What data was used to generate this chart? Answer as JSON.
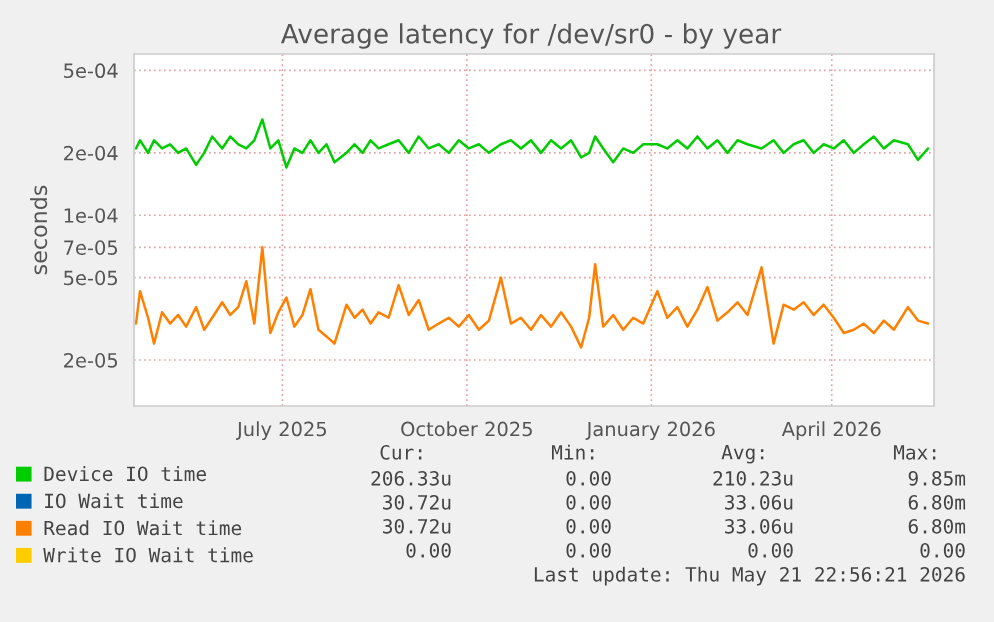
{
  "chart_data": {
    "type": "line",
    "title": "Average latency for /dev/sr0 - by year",
    "ylabel": "seconds",
    "log": "y",
    "grid": true,
    "legend": "bottom left",
    "x": [
      "2025-04-19",
      "2025-04-21",
      "2025-04-25",
      "2025-04-28",
      "2025-05-02",
      "2025-05-06",
      "2025-05-10",
      "2025-05-14",
      "2025-05-19",
      "2025-05-23",
      "2025-05-27",
      "2025-06-01",
      "2025-06-05",
      "2025-06-09",
      "2025-06-13",
      "2025-06-17",
      "2025-06-21",
      "2025-06-25",
      "2025-06-29",
      "2025-07-03",
      "2025-07-07",
      "2025-07-11",
      "2025-07-15",
      "2025-07-19",
      "2025-07-23",
      "2025-07-27",
      "2025-08-02",
      "2025-08-06",
      "2025-08-10",
      "2025-08-14",
      "2025-08-18",
      "2025-08-23",
      "2025-08-28",
      "2025-09-02",
      "2025-09-07",
      "2025-09-12",
      "2025-09-17",
      "2025-09-22",
      "2025-09-27",
      "2025-10-02",
      "2025-10-07",
      "2025-10-12",
      "2025-10-18",
      "2025-10-23",
      "2025-10-28",
      "2025-11-02",
      "2025-11-07",
      "2025-11-12",
      "2025-11-17",
      "2025-11-22",
      "2025-11-27",
      "2025-12-01",
      "2025-12-04",
      "2025-12-08",
      "2025-12-13",
      "2025-12-18",
      "2025-12-23",
      "2025-12-28",
      "2026-01-04",
      "2026-01-09",
      "2026-01-14",
      "2026-01-19",
      "2026-01-24",
      "2026-01-29",
      "2026-02-03",
      "2026-02-08",
      "2026-02-13",
      "2026-02-18",
      "2026-02-25",
      "2026-03-03",
      "2026-03-08",
      "2026-03-13",
      "2026-03-18",
      "2026-03-23",
      "2026-03-28",
      "2026-04-02",
      "2026-04-07",
      "2026-04-12",
      "2026-04-17",
      "2026-04-22",
      "2026-04-27",
      "2026-05-02",
      "2026-05-09",
      "2026-05-14",
      "2026-05-19"
    ],
    "series": [
      {
        "name": "Device IO time",
        "color": "#00cc00",
        "values": [
          0.00021,
          0.00023,
          0.0002,
          0.00023,
          0.00021,
          0.00022,
          0.0002,
          0.00021,
          0.000175,
          0.0002,
          0.00024,
          0.00021,
          0.00024,
          0.00022,
          0.00021,
          0.00023,
          0.00029,
          0.00021,
          0.00023,
          0.00017,
          0.00021,
          0.0002,
          0.00023,
          0.0002,
          0.00022,
          0.00018,
          0.0002,
          0.00022,
          0.0002,
          0.00023,
          0.00021,
          0.00022,
          0.00023,
          0.0002,
          0.00024,
          0.00021,
          0.00022,
          0.0002,
          0.00023,
          0.00021,
          0.00022,
          0.0002,
          0.00022,
          0.00023,
          0.00021,
          0.00023,
          0.0002,
          0.00023,
          0.00021,
          0.00023,
          0.00019,
          0.0002,
          0.00024,
          0.00021,
          0.00018,
          0.00021,
          0.0002,
          0.00022,
          0.00022,
          0.00021,
          0.00023,
          0.00021,
          0.00024,
          0.00021,
          0.00023,
          0.0002,
          0.00023,
          0.00022,
          0.00021,
          0.00023,
          0.0002,
          0.00022,
          0.00023,
          0.0002,
          0.00022,
          0.00021,
          0.00023,
          0.0002,
          0.00022,
          0.00024,
          0.00021,
          0.00023,
          0.00022,
          0.000185,
          0.00021
        ]
      },
      {
        "name": "IO Wait time",
        "color": "#0066b3",
        "values": [
          null,
          null,
          null,
          null,
          null,
          null,
          null,
          null,
          null,
          null,
          null,
          null,
          null,
          null,
          null,
          null,
          null,
          null,
          null,
          null,
          null,
          null,
          null,
          null,
          null,
          null,
          null,
          null,
          null,
          null,
          null,
          null,
          null,
          null,
          null,
          null,
          null,
          null,
          null,
          null,
          null,
          null,
          null,
          null,
          null,
          null,
          null,
          null,
          null,
          null,
          null,
          null,
          null,
          null,
          null,
          null,
          null,
          null,
          null,
          null,
          null,
          null,
          null,
          null,
          null,
          null,
          null,
          null,
          null,
          null,
          null,
          null,
          null,
          null,
          null,
          null,
          null,
          null,
          null,
          null,
          null,
          null,
          null,
          null,
          null
        ]
      },
      {
        "name": "Read IO Wait time",
        "color": "#ff8000",
        "values": [
          3e-05,
          4.3e-05,
          3.2e-05,
          2.4e-05,
          3.4e-05,
          3e-05,
          3.3e-05,
          2.9e-05,
          3.6e-05,
          2.8e-05,
          3.2e-05,
          3.8e-05,
          3.3e-05,
          3.6e-05,
          4.8e-05,
          3e-05,
          7e-05,
          2.7e-05,
          3.4e-05,
          4e-05,
          2.9e-05,
          3.3e-05,
          4.4e-05,
          2.8e-05,
          2.6e-05,
          2.4e-05,
          3.7e-05,
          3.2e-05,
          3.5e-05,
          3e-05,
          3.4e-05,
          3.2e-05,
          4.6e-05,
          3.3e-05,
          3.9e-05,
          2.8e-05,
          3e-05,
          3.2e-05,
          2.9e-05,
          3.3e-05,
          2.8e-05,
          3.1e-05,
          5e-05,
          3e-05,
          3.2e-05,
          2.8e-05,
          3.3e-05,
          2.9e-05,
          3.4e-05,
          2.9e-05,
          2.3e-05,
          3.2e-05,
          5.8e-05,
          2.9e-05,
          3.3e-05,
          2.8e-05,
          3.2e-05,
          3e-05,
          4.3e-05,
          3.2e-05,
          3.6e-05,
          2.9e-05,
          3.5e-05,
          4.5e-05,
          3.1e-05,
          3.4e-05,
          3.8e-05,
          3.3e-05,
          5.6e-05,
          2.4e-05,
          3.7e-05,
          3.5e-05,
          3.8e-05,
          3.3e-05,
          3.7e-05,
          3.2e-05,
          2.7e-05,
          2.8e-05,
          3e-05,
          2.7e-05,
          3.1e-05,
          2.8e-05,
          3.6e-05,
          3.1e-05,
          3e-05
        ]
      },
      {
        "name": "Write IO Wait time",
        "color": "#ffcc00",
        "values": [
          null,
          null,
          null,
          null,
          null,
          null,
          null,
          null,
          null,
          null,
          null,
          null,
          null,
          null,
          null,
          null,
          null,
          null,
          null,
          null,
          null,
          null,
          null,
          null,
          null,
          null,
          null,
          null,
          null,
          null,
          null,
          null,
          null,
          null,
          null,
          null,
          null,
          null,
          null,
          null,
          null,
          null,
          null,
          null,
          null,
          null,
          null,
          null,
          null,
          null,
          null,
          null,
          null,
          null,
          null,
          null,
          null,
          null,
          null,
          null,
          null,
          null,
          null,
          null,
          null,
          null,
          null,
          null,
          null,
          null,
          null,
          null,
          null,
          null,
          null,
          null,
          null,
          null,
          null,
          null,
          null,
          null,
          null,
          null,
          null
        ]
      }
    ],
    "xlim": [
      "2025-04-18",
      "2026-05-22"
    ],
    "xticks": [
      {
        "value": "2025-07-01",
        "label": "July 2025"
      },
      {
        "value": "2025-10-01",
        "label": "October 2025"
      },
      {
        "value": "2026-01-01",
        "label": "January 2026"
      },
      {
        "value": "2026-04-01",
        "label": "April 2026"
      }
    ],
    "ylim": [
      1.2e-05,
      0.0006
    ],
    "yticks": [
      {
        "value": 2e-05,
        "label": "2e-05"
      },
      {
        "value": 5e-05,
        "label": "5e-05"
      },
      {
        "value": 7e-05,
        "label": "7e-05"
      },
      {
        "value": 0.0001,
        "label": "1e-04"
      },
      {
        "value": 0.0002,
        "label": "2e-04"
      },
      {
        "value": 0.0005,
        "label": "5e-04"
      }
    ],
    "annotations": [
      "Cur:",
      "Min:",
      "Avg:",
      "Max:",
      "206.33u",
      "0.00",
      "210.23u",
      "9.85m",
      "30.72u",
      "0.00",
      "33.06u",
      "6.80m",
      "30.72u",
      "0.00",
      "33.06u",
      "6.80m",
      "0.00",
      "0.00",
      "0.00",
      "0.00",
      "Last update: Thu May 21 22:56:21 2026"
    ]
  }
}
